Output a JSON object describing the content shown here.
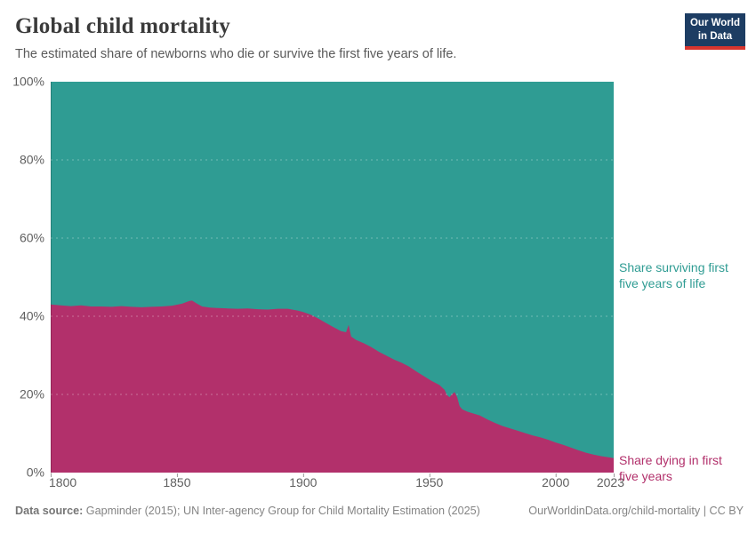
{
  "header": {
    "title": "Global child mortality",
    "subtitle": "The estimated share of newborns who die or survive the first five years of life.",
    "logo": {
      "line1": "Our World",
      "line2": "in Data"
    }
  },
  "footer": {
    "source_label": "Data source:",
    "source_text": " Gapminder (2015); UN Inter-agency Group for Child Mortality Estimation (2025)",
    "link_text": "OurWorldinData.org/child-mortality | CC BY"
  },
  "colors": {
    "surviving_area": "#2f9c93",
    "dying_area": "#b2306b",
    "logo_navy": "#1d3d63",
    "logo_red": "#d8352e",
    "axis_text": "#5f5f5f",
    "gridline": "rgba(255,255,255,0.32)",
    "tick_mark": "#9a9a9a"
  },
  "chart_data": {
    "type": "area",
    "stacked": true,
    "title": "Global child mortality",
    "xlabel": "",
    "ylabel": "",
    "xlim": [
      1800,
      2023
    ],
    "ylim": [
      0,
      100
    ],
    "x_ticks": [
      1800,
      1850,
      1900,
      1950,
      2000,
      2023
    ],
    "x_tick_labels": [
      "1800",
      "1850",
      "1900",
      "1950",
      "2000",
      "2023"
    ],
    "y_ticks": [
      0,
      20,
      40,
      60,
      80,
      100
    ],
    "y_tick_labels": [
      "0%",
      "20%",
      "40%",
      "60%",
      "80%",
      "100%"
    ],
    "grid": "dashed horizontal gridlines over areas",
    "legend_position": "labels at right edge of plot",
    "series": [
      {
        "name": "Share dying in first five years",
        "label_lines": [
          "Share dying in first",
          "five years"
        ],
        "color": "#b2306b",
        "x": [
          1800,
          1804,
          1808,
          1812,
          1816,
          1820,
          1824,
          1828,
          1832,
          1836,
          1840,
          1844,
          1848,
          1852,
          1855,
          1856,
          1858,
          1860,
          1863,
          1866,
          1870,
          1874,
          1878,
          1882,
          1886,
          1890,
          1894,
          1898,
          1900,
          1903,
          1906,
          1909,
          1912,
          1915,
          1917,
          1918,
          1919,
          1921,
          1924,
          1927,
          1930,
          1933,
          1936,
          1939,
          1942,
          1945,
          1948,
          1951,
          1954,
          1956,
          1957,
          1958,
          1959,
          1960,
          1961,
          1962,
          1963,
          1965,
          1967,
          1970,
          1973,
          1976,
          1979,
          1982,
          1985,
          1988,
          1991,
          1994,
          1997,
          2000,
          2003,
          2006,
          2009,
          2012,
          2015,
          2018,
          2021,
          2023
        ],
        "values": [
          43.0,
          42.8,
          42.6,
          42.8,
          42.5,
          42.5,
          42.4,
          42.6,
          42.4,
          42.3,
          42.4,
          42.5,
          42.7,
          43.2,
          43.9,
          44.0,
          43.2,
          42.5,
          42.2,
          42.1,
          42.0,
          41.9,
          42.0,
          41.8,
          41.7,
          41.9,
          41.9,
          41.4,
          41.1,
          40.4,
          39.4,
          38.3,
          37.2,
          36.2,
          35.9,
          37.8,
          34.8,
          33.9,
          33.1,
          32.1,
          30.9,
          29.9,
          28.9,
          28.1,
          27.1,
          25.8,
          24.6,
          23.4,
          22.4,
          21.2,
          19.8,
          19.3,
          20.1,
          20.6,
          19.3,
          17.0,
          16.2,
          15.6,
          15.2,
          14.6,
          13.6,
          12.7,
          11.9,
          11.3,
          10.7,
          10.1,
          9.5,
          9.0,
          8.4,
          7.7,
          7.1,
          6.4,
          5.7,
          5.1,
          4.6,
          4.2,
          3.9,
          3.7
        ]
      },
      {
        "name": "Share surviving first five years of life",
        "label_lines": [
          "Share surviving first",
          "five years of life"
        ],
        "color": "#2f9c93",
        "values_note": "complement series: 100 minus 'Share dying in first five years' at every x"
      }
    ]
  }
}
